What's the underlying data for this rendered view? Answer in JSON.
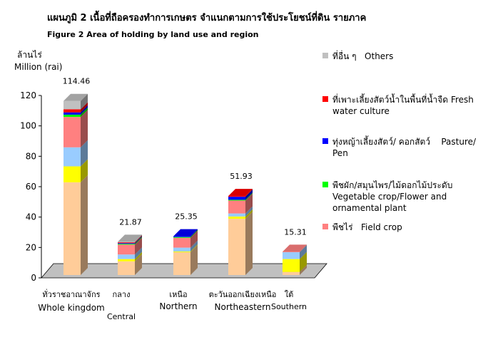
{
  "chart_data": {
    "type": "bar",
    "stacked": true,
    "title_th": "แผนภูมิ 2  เนื้อที่ถือครองทำการเกษตร  จำแนกตามการใช้ประโยชน์ที่ดิน  รายภาค",
    "title": "Figure    2  Area of holding by land use and region",
    "ylabel_th": "ล้านไร่",
    "ylabel": "Million (rai)",
    "ylim": [
      0,
      120
    ],
    "yticks": [
      "0",
      "20",
      "40",
      "60",
      "80",
      "100",
      "120"
    ],
    "categories": [
      {
        "th": "ทั่วราชอาณาจักร",
        "en": "Whole kingdom"
      },
      {
        "th": "กลาง",
        "en": "Central"
      },
      {
        "th": "เหนือ",
        "en": "Northern"
      },
      {
        "th": "ตะวันออกเฉียงเหนือ",
        "en": "Northeastern"
      },
      {
        "th": "ใต้",
        "en": "Southern"
      }
    ],
    "totals": [
      "114.46",
      "21.87",
      "25.35",
      "51.93",
      "15.31"
    ],
    "series": [
      {
        "key": "rice",
        "color": "#FFCC99",
        "values": [
          61.0,
          9.0,
          15.0,
          37.0,
          2.0
        ]
      },
      {
        "key": "para",
        "color": "#FFFF00",
        "values": [
          10.5,
          1.5,
          0.5,
          1.5,
          8.5
        ]
      },
      {
        "key": "light",
        "color": "#99CCFF",
        "values": [
          12.5,
          3.0,
          2.5,
          2.0,
          4.5
        ]
      },
      {
        "th": "พืชไร่",
        "name": "Field crop",
        "color": "#FF8080",
        "values": [
          20.0,
          6.5,
          6.5,
          8.5,
          0.3
        ]
      },
      {
        "th": "พืชผัก/สมุนไพร/ไม้ดอกไม้ประดับ",
        "name": "Vegetable crop/Flower and ornamental plant",
        "color": "#00FF00",
        "values": [
          1.5,
          0.5,
          0.5,
          0.5,
          0.0
        ]
      },
      {
        "th": "ทุ่งหญ้าเลี้ยงสัตว์/ คอกสัตว์",
        "name": "Pasture/ Pen",
        "color": "#0000FF",
        "values": [
          1.5,
          0.5,
          0.5,
          2.0,
          0.0
        ]
      },
      {
        "th": "ที่เพาะเลี้ยงสัตว์น้ำในพื้นที่น้ำจืด",
        "name": "Fresh water  culture",
        "color": "#FF0000",
        "values": [
          2.0,
          0.5,
          0.0,
          0.5,
          0.0
        ]
      },
      {
        "th": "ที่อื่น ๆ",
        "name": "Others",
        "color": "#C0C0C0",
        "values": [
          5.5,
          0.37,
          0.0,
          0.0,
          0.0
        ]
      }
    ],
    "legend": [
      {
        "th": "ที่อื่น ๆ",
        "en": "Others",
        "color": "#C0C0C0"
      },
      {
        "th": "ที่เพาะเลี้ยงสัตว์น้ำในพื้นที่น้ำจืด",
        "en": "Fresh water  culture",
        "color": "#FF0000"
      },
      {
        "th": "ทุ่งหญ้าเลี้ยงสัตว์/ คอกสัตว์",
        "en": "Pasture/ Pen",
        "color": "#0000FF"
      },
      {
        "th": "พืชผัก/สมุนไพร/ไม้ดอกไม้ประดับ",
        "en": "Vegetable crop/Flower and ornamental plant",
        "color": "#00FF00"
      },
      {
        "th": "พืชไร่",
        "en": "Field crop",
        "color": "#FF8080"
      }
    ],
    "legend_placement": "right",
    "grid": false
  }
}
